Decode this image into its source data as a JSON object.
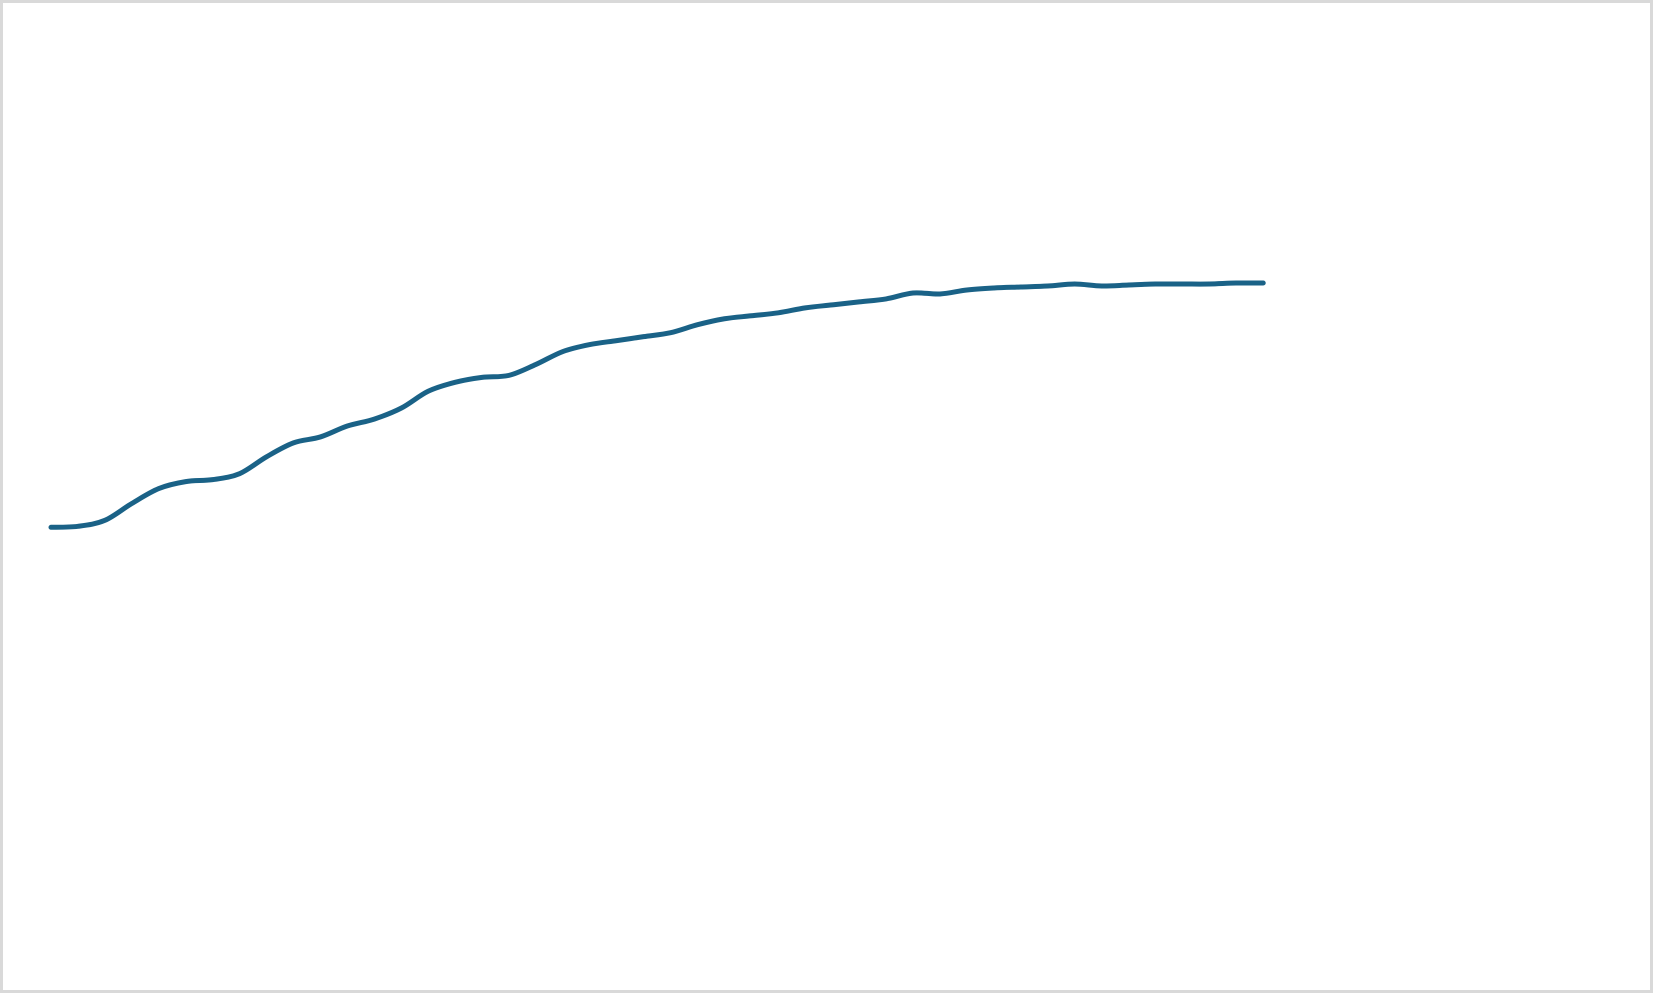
{
  "chart_data": {
    "type": "line",
    "title": "",
    "xlabel": "",
    "ylabel": "",
    "grid": false,
    "legend": "none",
    "axes_visible": false,
    "xlim": [
      0,
      49
    ],
    "ylim": [
      0,
      100
    ],
    "series": [
      {
        "color": "#1a6287",
        "values": [
          47.2,
          47.3,
          47.9,
          49.6,
          51.1,
          51.8,
          52.0,
          52.6,
          54.3,
          55.7,
          56.3,
          57.4,
          58.1,
          59.2,
          60.9,
          61.8,
          62.3,
          62.5,
          63.6,
          64.9,
          65.6,
          66.0,
          66.4,
          66.8,
          67.6,
          68.2,
          68.5,
          68.8,
          69.3,
          69.6,
          69.9,
          70.2,
          70.8,
          70.7,
          71.1,
          71.3,
          71.4,
          71.5,
          71.7,
          71.5,
          71.6,
          71.7,
          71.7,
          71.7,
          71.8,
          71.8
        ]
      }
    ]
  }
}
